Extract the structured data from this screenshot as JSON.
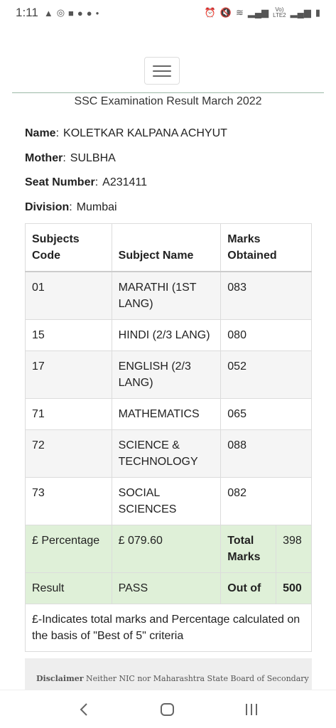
{
  "status_bar": {
    "time": "1:11"
  },
  "heading": "SSC Examination Result March 2022",
  "student": {
    "name_label": "Name",
    "name": "KOLETKAR KALPANA ACHYUT",
    "mother_label": "Mother",
    "mother": "SULBHA",
    "seat_label": "Seat Number",
    "seat": "A231411",
    "division_label": "Division",
    "division": "Mumbai"
  },
  "table": {
    "headers": [
      "Subjects Code",
      "Subject Name",
      "Marks Obtained"
    ],
    "rows": [
      {
        "code": "01",
        "name": "MARATHI (1ST LANG)",
        "marks": "083"
      },
      {
        "code": "15",
        "name": "HINDI (2/3 LANG)",
        "marks": "080"
      },
      {
        "code": "17",
        "name": "ENGLISH (2/3 LANG)",
        "marks": "052"
      },
      {
        "code": "71",
        "name": "MATHEMATICS",
        "marks": "065"
      },
      {
        "code": "72",
        "name": "SCIENCE & TECHNOLOGY",
        "marks": "088"
      },
      {
        "code": "73",
        "name": "SOCIAL SCIENCES",
        "marks": "082"
      }
    ],
    "percentage_label": "£ Percentage",
    "percentage_value": "£ 079.60",
    "total_label": "Total Marks",
    "total_value": "398",
    "result_label": "Result",
    "result_value": "PASS",
    "outof_label": "Out of",
    "outof_value": "500",
    "note": "£-Indicates total marks and Percentage calculated on the basis of \"Best of 5\" criteria"
  },
  "disclaimer": {
    "label": "Disclaimer",
    "text": "Neither NIC nor Maharashtra State Board of Secondary"
  },
  "colors": {
    "green_row": "#dff0d8",
    "stripe": "#f5f5f5",
    "border": "#dcdcdc"
  }
}
